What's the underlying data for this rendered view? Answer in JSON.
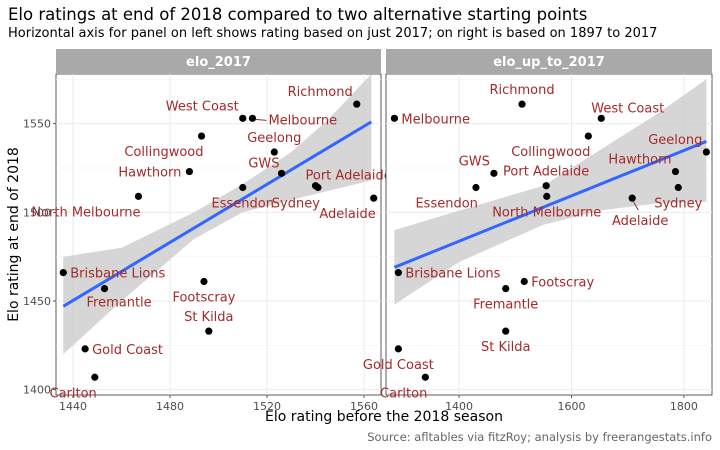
{
  "title": "Elo ratings at end of 2018 compared to two alternative starting points",
  "subtitle": "Horizontal axis for panel on left shows rating based on just 2017; on right is based on 1897 to 2017",
  "caption": "Source: afltables via fitzRoy; analysis by freerangestats.info",
  "colors": {
    "strip_bg": "#a9a9a9",
    "strip_text": "#ffffff",
    "label": "#a52a2a",
    "point": "#000000",
    "fit_line": "#3366ff",
    "ribbon": "#cccccc",
    "grid": "#ebebeb",
    "axis_text": "#4d4d4d"
  },
  "chart_data": {
    "type": "scatter",
    "xlabel": "Elo rating before the 2018 season",
    "ylabel": "Elo rating at end of 2018",
    "y_ticks": [
      1400,
      1450,
      1500,
      1550
    ],
    "ylim": [
      1397,
      1578
    ],
    "grid": true,
    "smooth": "linear fit with grey confidence ribbon",
    "panels": [
      {
        "name": "elo_2017",
        "xlim": [
          1433,
          1567
        ],
        "x_ticks": [
          1440,
          1480,
          1520,
          1560
        ],
        "fit": {
          "x": [
            1436,
            1563
          ],
          "y": [
            1447,
            1551
          ]
        },
        "ribbon": {
          "x": [
            1436,
            1460,
            1490,
            1510,
            1530,
            1545,
            1563
          ],
          "lower": [
            1420,
            1450,
            1485,
            1500,
            1507,
            1512,
            1518
          ],
          "upper": [
            1475,
            1480,
            1500,
            1516,
            1534,
            1552,
            1585
          ]
        },
        "points": [
          {
            "team": "Richmond",
            "x": 1557,
            "y": 1561
          },
          {
            "team": "West Coast",
            "x": 1510,
            "y": 1553
          },
          {
            "team": "Melbourne",
            "x": 1514,
            "y": 1553
          },
          {
            "team": "Collingwood",
            "x": 1493,
            "y": 1543
          },
          {
            "team": "Geelong",
            "x": 1523,
            "y": 1534
          },
          {
            "team": "Hawthorn",
            "x": 1488,
            "y": 1523
          },
          {
            "team": "GWS",
            "x": 1526,
            "y": 1522
          },
          {
            "team": "Port Adelaide",
            "x": 1540,
            "y": 1515
          },
          {
            "team": "Sydney",
            "x": 1541,
            "y": 1514
          },
          {
            "team": "Essendon",
            "x": 1510,
            "y": 1514
          },
          {
            "team": "North Melbourne",
            "x": 1467,
            "y": 1509
          },
          {
            "team": "Adelaide",
            "x": 1564,
            "y": 1508
          },
          {
            "team": "Brisbane Lions",
            "x": 1436,
            "y": 1466
          },
          {
            "team": "Footscray",
            "x": 1494,
            "y": 1461
          },
          {
            "team": "Fremantle",
            "x": 1453,
            "y": 1457
          },
          {
            "team": "St Kilda",
            "x": 1496,
            "y": 1433
          },
          {
            "team": "Gold Coast",
            "x": 1445,
            "y": 1423
          },
          {
            "team": "Carlton",
            "x": 1449,
            "y": 1407
          }
        ]
      },
      {
        "name": "elo_up_to_2017",
        "xlim": [
          1270,
          1850
        ],
        "x_ticks": [
          1400,
          1600,
          1800
        ],
        "fit": {
          "x": [
            1285,
            1840
          ],
          "y": [
            1469,
            1540
          ]
        },
        "ribbon": {
          "x": [
            1285,
            1400,
            1550,
            1650,
            1750,
            1840
          ],
          "lower": [
            1448,
            1472,
            1493,
            1501,
            1505,
            1506
          ],
          "upper": [
            1490,
            1501,
            1515,
            1535,
            1555,
            1575
          ]
        },
        "points": [
          {
            "team": "Richmond",
            "x": 1512,
            "y": 1561
          },
          {
            "team": "West Coast",
            "x": 1653,
            "y": 1553
          },
          {
            "team": "Melbourne",
            "x": 1285,
            "y": 1553
          },
          {
            "team": "Collingwood",
            "x": 1630,
            "y": 1543
          },
          {
            "team": "Geelong",
            "x": 1840,
            "y": 1534
          },
          {
            "team": "Hawthorn",
            "x": 1785,
            "y": 1523
          },
          {
            "team": "GWS",
            "x": 1462,
            "y": 1522
          },
          {
            "team": "Port Adelaide",
            "x": 1555,
            "y": 1515
          },
          {
            "team": "Sydney",
            "x": 1790,
            "y": 1514
          },
          {
            "team": "Essendon",
            "x": 1430,
            "y": 1514
          },
          {
            "team": "North Melbourne",
            "x": 1556,
            "y": 1509
          },
          {
            "team": "Adelaide",
            "x": 1708,
            "y": 1508
          },
          {
            "team": "Brisbane Lions",
            "x": 1292,
            "y": 1466
          },
          {
            "team": "Footscray",
            "x": 1516,
            "y": 1461
          },
          {
            "team": "Fremantle",
            "x": 1483,
            "y": 1457
          },
          {
            "team": "St Kilda",
            "x": 1483,
            "y": 1433
          },
          {
            "team": "Gold Coast",
            "x": 1292,
            "y": 1423
          },
          {
            "team": "Carlton",
            "x": 1340,
            "y": 1407
          }
        ]
      }
    ]
  }
}
